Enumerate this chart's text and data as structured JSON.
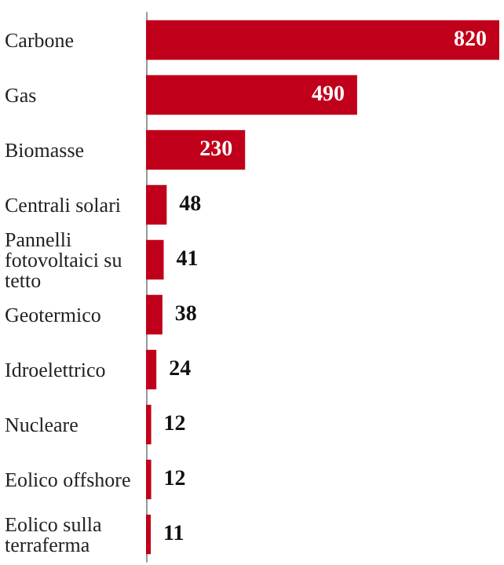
{
  "chart_data": {
    "type": "bar",
    "orientation": "horizontal",
    "categories": [
      "Carbone",
      "Gas",
      "Biomasse",
      "Centrali solari",
      "Pannelli fotovoltaici su tetto",
      "Geotermico",
      "Idroelettrico",
      "Nucleare",
      "Eolico offshore",
      "Eolico sulla terraferma"
    ],
    "values": [
      820,
      490,
      230,
      48,
      41,
      38,
      24,
      12,
      12,
      11
    ],
    "color": "#c0001a",
    "data_labels": true
  }
}
